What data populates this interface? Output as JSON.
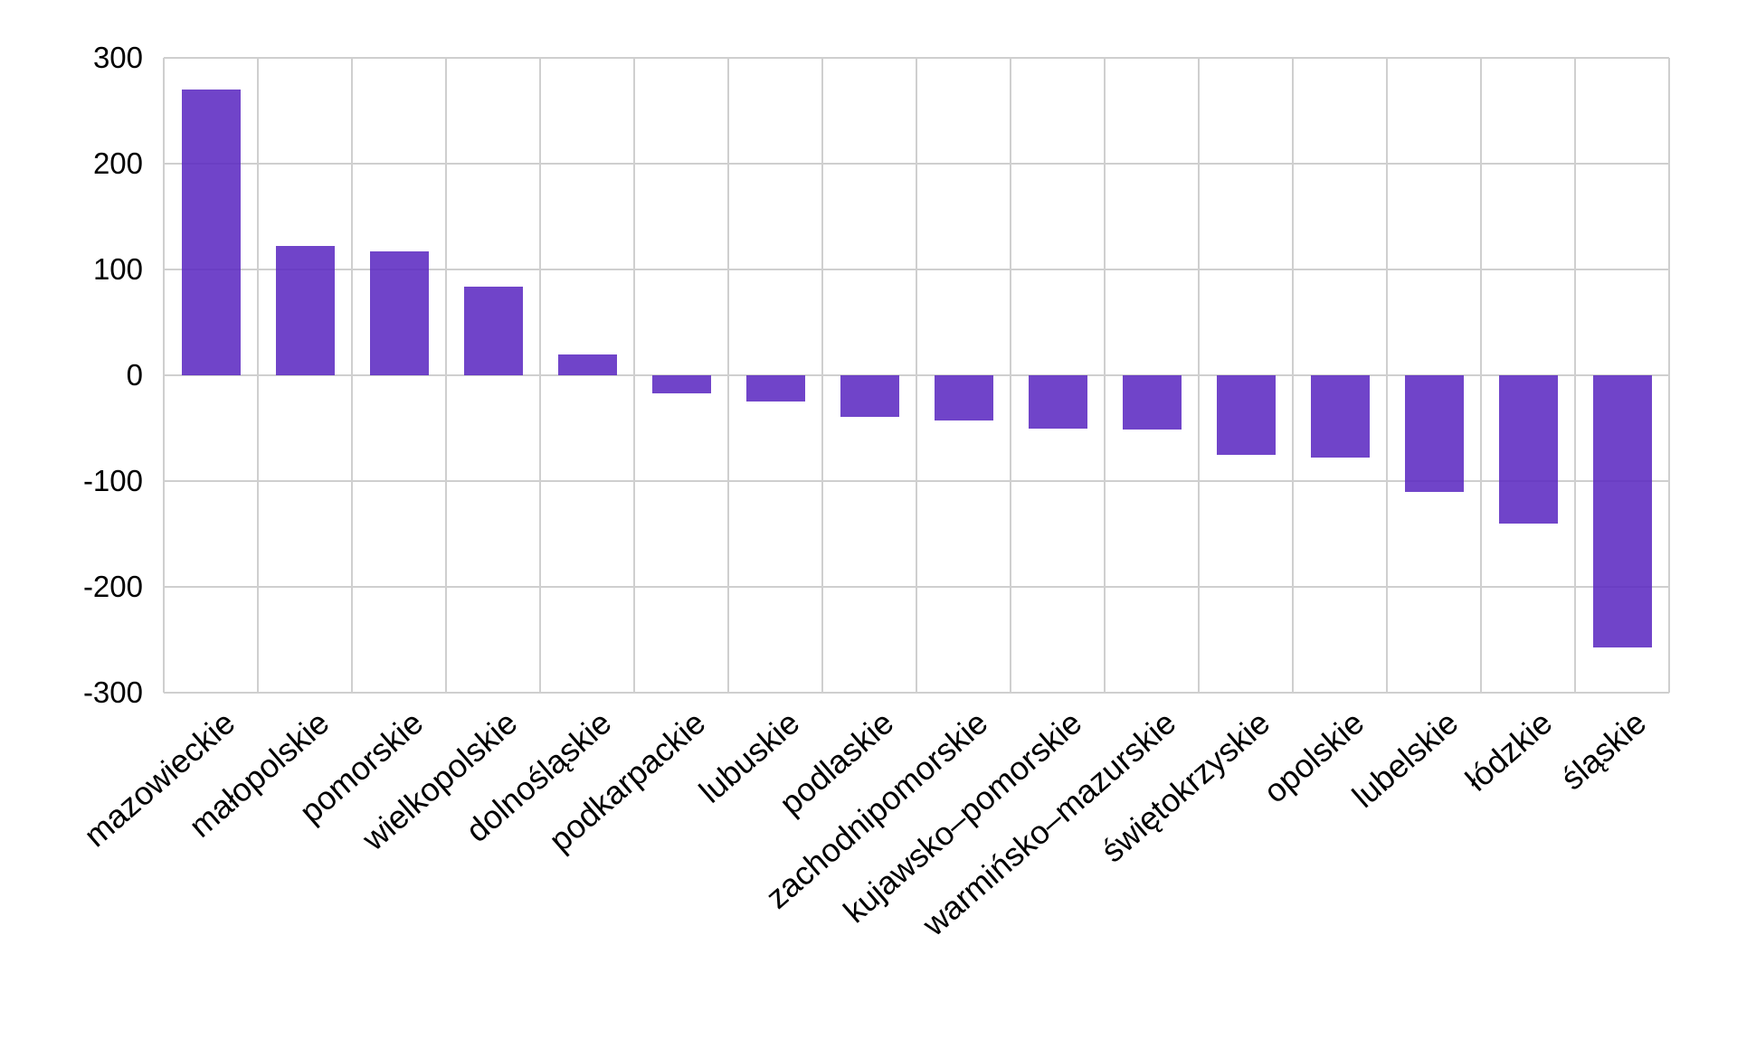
{
  "chart_data": {
    "type": "bar",
    "title": "",
    "xlabel": "",
    "ylabel": "",
    "categories": [
      "mazowieckie",
      "małopolskie",
      "pomorskie",
      "wielkopolskie",
      "dolnośląskie",
      "podkarpackie",
      "lubuskie",
      "podlaskie",
      "zachodnipomorskie",
      "kujawsko–pomorskie",
      "warmińsko–mazurskie",
      "świętokrzyskie",
      "opolskie",
      "lubelskie",
      "łódzkie",
      "śląskie"
    ],
    "values": [
      270,
      122,
      117,
      84,
      20,
      -17,
      -25,
      -39,
      -43,
      -50,
      -51,
      -75,
      -78,
      -110,
      -140,
      -257
    ],
    "ylim": [
      -300,
      300
    ],
    "yticks": [
      300,
      200,
      100,
      0,
      -100,
      -200,
      -300
    ],
    "grid": true,
    "legend": false,
    "x_tick_rotation_deg": 41,
    "colors": {
      "bar_fill": "rgba(92,42,194,0.88)",
      "bar_displayed_hex": "#7142c8",
      "gridline": "#cfcfcf",
      "axis_text": "#000000",
      "background": "#ffffff"
    }
  }
}
